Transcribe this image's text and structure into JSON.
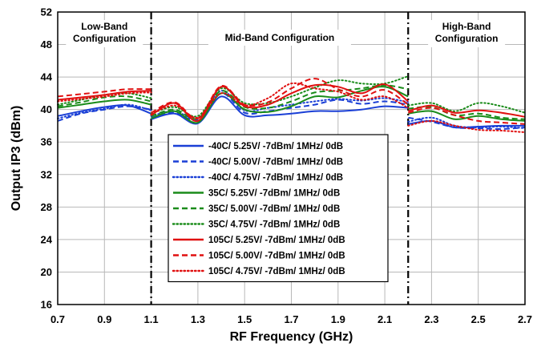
{
  "chart_data": {
    "type": "line",
    "xlabel": "RF Frequency (GHz)",
    "ylabel": "Output IP3 (dBm)",
    "xlim": [
      0.7,
      2.7
    ],
    "ylim": [
      16,
      52
    ],
    "x_ticks": [
      "0.7",
      "0.9",
      "1.1",
      "1.3",
      "1.5",
      "1.7",
      "1.9",
      "2.1",
      "2.3",
      "2.5",
      "2.7"
    ],
    "y_ticks": [
      "16",
      "20",
      "24",
      "28",
      "32",
      "36",
      "40",
      "44",
      "48",
      "52"
    ],
    "grid": true,
    "legend_position": "center",
    "band_dividers": [
      1.1,
      2.2
    ],
    "regions": [
      {
        "lines": [
          "Low-Band",
          "Configuration"
        ]
      },
      {
        "lines": [
          "Mid-Band Configuration"
        ]
      },
      {
        "lines": [
          "High-Band",
          "Configuration"
        ]
      }
    ],
    "series": [
      {
        "name": "-40C/ 5.25V/ -7dBm/ 1MHz/ 0dB",
        "color": "#1a3fd6",
        "dash": "solid",
        "x": [
          0.7,
          0.8,
          0.9,
          1.0,
          1.1,
          1.1,
          1.2,
          1.3,
          1.4,
          1.5,
          1.6,
          1.7,
          1.8,
          1.9,
          2.0,
          2.1,
          2.2,
          2.2,
          2.3,
          2.4,
          2.5,
          2.6,
          2.7
        ],
        "y": [
          39.2,
          39.8,
          40.3,
          40.5,
          39.5,
          38.8,
          39.5,
          38.3,
          41.6,
          39.3,
          39.3,
          39.5,
          39.8,
          39.8,
          40.0,
          40.4,
          40.2,
          38.2,
          38.6,
          37.8,
          37.9,
          38.0,
          38.0
        ]
      },
      {
        "name": "-40C/ 5.00V/ -7dBm/ 1MHz/ 0dB",
        "color": "#1a3fd6",
        "dash": "dash",
        "x": [
          0.7,
          0.8,
          0.9,
          1.0,
          1.1,
          1.1,
          1.2,
          1.3,
          1.4,
          1.5,
          1.6,
          1.7,
          1.8,
          1.9,
          2.0,
          2.1,
          2.2,
          2.2,
          2.3,
          2.4,
          2.5,
          2.6,
          2.7
        ],
        "y": [
          38.6,
          39.5,
          40.0,
          40.4,
          40.0,
          39.0,
          39.6,
          38.7,
          42.0,
          39.6,
          39.8,
          40.2,
          40.6,
          41.2,
          40.7,
          41.0,
          40.6,
          39.0,
          38.5,
          37.8,
          37.7,
          37.6,
          37.8
        ]
      },
      {
        "name": "-40C/ 4.75V/ -7dBm/ 1MHz/ 0dB",
        "color": "#1a3fd6",
        "dash": "dot",
        "x": [
          0.7,
          0.8,
          0.9,
          1.0,
          1.1,
          1.1,
          1.2,
          1.3,
          1.4,
          1.5,
          1.6,
          1.7,
          1.8,
          1.9,
          2.0,
          2.1,
          2.2,
          2.2,
          2.3,
          2.4,
          2.5,
          2.6,
          2.7
        ],
        "y": [
          38.9,
          39.6,
          40.1,
          40.6,
          39.9,
          39.2,
          39.8,
          38.9,
          42.3,
          39.9,
          40.2,
          40.6,
          41.0,
          41.3,
          41.1,
          41.4,
          40.9,
          38.5,
          39.0,
          38.0,
          37.8,
          37.9,
          37.7
        ]
      },
      {
        "name": "35C/ 5.25V/ -7dBm/ 1MHz/ 0dB",
        "color": "#1a8c1a",
        "dash": "solid",
        "x": [
          0.7,
          0.8,
          0.9,
          1.0,
          1.1,
          1.1,
          1.2,
          1.3,
          1.4,
          1.5,
          1.6,
          1.7,
          1.8,
          1.9,
          2.0,
          2.1,
          2.2,
          2.2,
          2.3,
          2.4,
          2.5,
          2.6,
          2.7
        ],
        "y": [
          40.2,
          40.6,
          41.0,
          41.2,
          40.6,
          38.9,
          39.8,
          38.4,
          42.0,
          40.0,
          39.7,
          40.4,
          41.6,
          41.5,
          42.3,
          42.8,
          41.6,
          39.5,
          39.8,
          38.8,
          39.2,
          38.8,
          38.6
        ]
      },
      {
        "name": "35C/ 5.00V/ -7dBm/ 1MHz/ 0dB",
        "color": "#1a8c1a",
        "dash": "dash",
        "x": [
          0.7,
          0.8,
          0.9,
          1.0,
          1.1,
          1.1,
          1.2,
          1.3,
          1.4,
          1.5,
          1.6,
          1.7,
          1.8,
          1.9,
          2.0,
          2.1,
          2.2,
          2.2,
          2.3,
          2.4,
          2.5,
          2.6,
          2.7
        ],
        "y": [
          40.4,
          40.9,
          41.5,
          41.6,
          41.0,
          39.2,
          40.0,
          38.9,
          42.3,
          40.3,
          40.2,
          41.0,
          42.1,
          42.3,
          42.6,
          43.0,
          42.5,
          40.1,
          40.3,
          39.3,
          39.5,
          39.0,
          38.8
        ]
      },
      {
        "name": "35C/ 4.75V/ -7dBm/ 1MHz/ 0dB",
        "color": "#1a8c1a",
        "dash": "dot",
        "x": [
          0.7,
          0.8,
          0.9,
          1.0,
          1.1,
          1.1,
          1.2,
          1.3,
          1.4,
          1.5,
          1.6,
          1.7,
          1.8,
          1.9,
          2.0,
          2.1,
          2.2,
          2.2,
          2.3,
          2.4,
          2.5,
          2.6,
          2.7
        ],
        "y": [
          40.6,
          41.2,
          41.8,
          42.0,
          41.4,
          39.5,
          40.3,
          39.2,
          42.6,
          40.8,
          40.8,
          41.6,
          42.7,
          43.6,
          43.2,
          43.2,
          44.1,
          40.5,
          40.8,
          39.8,
          40.8,
          40.4,
          39.6
        ]
      },
      {
        "name": "105C/ 5.25V/ -7dBm/ 1MHz/ 0dB",
        "color": "#e01010",
        "dash": "solid",
        "x": [
          0.7,
          0.8,
          0.9,
          1.0,
          1.1,
          1.1,
          1.2,
          1.3,
          1.4,
          1.5,
          1.6,
          1.7,
          1.8,
          1.9,
          2.0,
          2.1,
          2.2,
          2.2,
          2.3,
          2.4,
          2.5,
          2.6,
          2.7
        ],
        "y": [
          41.2,
          41.5,
          41.8,
          42.2,
          42.3,
          39.3,
          40.8,
          38.6,
          42.8,
          40.4,
          40.6,
          42.0,
          43.0,
          42.8,
          42.0,
          43.1,
          41.0,
          39.8,
          40.5,
          39.6,
          39.9,
          39.6,
          39.1
        ]
      },
      {
        "name": "105C/ 5.00V/ -7dBm/ 1MHz/ 0dB",
        "color": "#e01010",
        "dash": "dash",
        "x": [
          0.7,
          0.8,
          0.9,
          1.0,
          1.1,
          1.1,
          1.2,
          1.3,
          1.4,
          1.5,
          1.6,
          1.7,
          1.8,
          1.9,
          2.0,
          2.1,
          2.2,
          2.2,
          2.3,
          2.4,
          2.5,
          2.6,
          2.7
        ],
        "y": [
          41.6,
          41.9,
          42.2,
          42.5,
          42.5,
          39.6,
          40.9,
          38.9,
          42.9,
          40.6,
          40.9,
          42.6,
          43.8,
          42.5,
          41.6,
          42.4,
          40.6,
          39.6,
          40.2,
          39.3,
          38.6,
          38.4,
          38.2
        ]
      },
      {
        "name": "105C/ 4.75V/ -7dBm/ 1MHz/ 0dB",
        "color": "#e01010",
        "dash": "dot",
        "x": [
          0.7,
          0.8,
          0.9,
          1.0,
          1.1,
          1.1,
          1.2,
          1.3,
          1.4,
          1.5,
          1.6,
          1.7,
          1.8,
          1.9,
          2.0,
          2.1,
          2.2,
          2.2,
          2.3,
          2.4,
          2.5,
          2.6,
          2.7
        ],
        "y": [
          41.0,
          41.3,
          41.6,
          42.0,
          42.1,
          39.4,
          40.5,
          39.0,
          42.0,
          40.5,
          41.4,
          43.2,
          42.6,
          42.2,
          41.2,
          41.6,
          40.2,
          38.0,
          38.6,
          38.0,
          37.5,
          37.4,
          37.2
        ]
      }
    ]
  }
}
